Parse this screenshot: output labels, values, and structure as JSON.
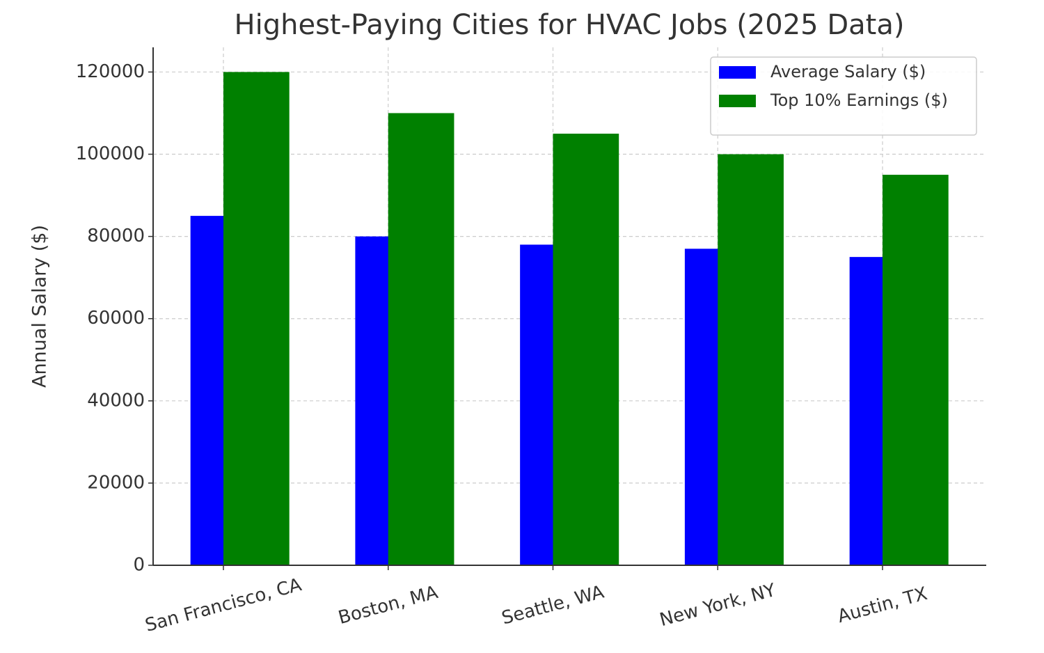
{
  "chart_data": {
    "type": "bar",
    "title": "Highest-Paying Cities for HVAC Jobs (2025 Data)",
    "y_label": "Annual Salary ($)",
    "categories": [
      "San Francisco, CA",
      "Boston, MA",
      "Seattle, WA",
      "New York, NY",
      "Austin, TX"
    ],
    "series": [
      {
        "name": "Average Salary ($)",
        "color": "#0000ff",
        "values": [
          85000,
          80000,
          78000,
          77000,
          75000
        ]
      },
      {
        "name": "Top 10% Earnings ($)",
        "color": "#008000",
        "values": [
          120000,
          110000,
          105000,
          100000,
          95000
        ]
      }
    ],
    "ylim": [
      0,
      126000
    ],
    "yticks": [
      0,
      20000,
      40000,
      60000,
      80000,
      100000,
      120000
    ],
    "grid": true,
    "legend": "upper right"
  }
}
